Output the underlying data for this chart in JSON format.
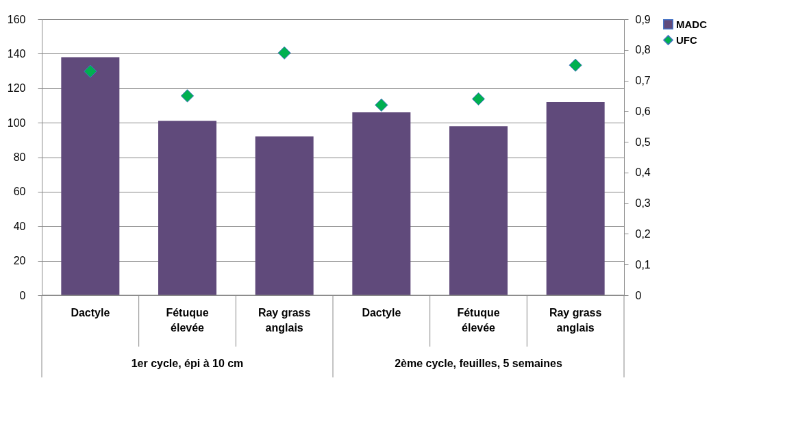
{
  "chart_data": {
    "type": "bar",
    "categories": [
      "Dactyle",
      "Fétuque élevée",
      "Ray grass anglais",
      "Dactyle",
      "Fétuque élevée",
      "Ray grass anglais"
    ],
    "annotations": [
      "1er cycle, épi à 10 cm",
      "2ème cycle, feuilles, 5 semaines"
    ],
    "series": [
      {
        "name": "MADC",
        "color": "#604a7b",
        "values": [
          138,
          101,
          92,
          106,
          98,
          112
        ]
      },
      {
        "name": "UFC",
        "type": "scatter",
        "axis": "y2",
        "marker": "diamond",
        "color": "#00b050",
        "values": [
          0.73,
          0.65,
          0.79,
          0.62,
          0.64,
          0.75
        ]
      }
    ],
    "ylim": [
      0,
      160
    ],
    "yticks": [
      0,
      20,
      40,
      60,
      80,
      100,
      120,
      140,
      160
    ],
    "y2lim": [
      0,
      0.9
    ],
    "y2ticks": [
      0,
      {
        "value": 0.1,
        "label": "0,1"
      },
      {
        "value": 0.2,
        "label": "0,2"
      },
      {
        "value": 0.3,
        "label": "0,3"
      },
      {
        "value": 0.4,
        "label": "0,4"
      },
      {
        "value": 0.5,
        "label": "0,5"
      },
      {
        "value": 0.6,
        "label": "0,6"
      },
      {
        "value": 0.7,
        "label": "0,7"
      },
      {
        "value": 0.8,
        "label": "0,8"
      },
      {
        "value": 0.9,
        "label": "0,9"
      }
    ],
    "grid": "y",
    "legend": "right"
  }
}
